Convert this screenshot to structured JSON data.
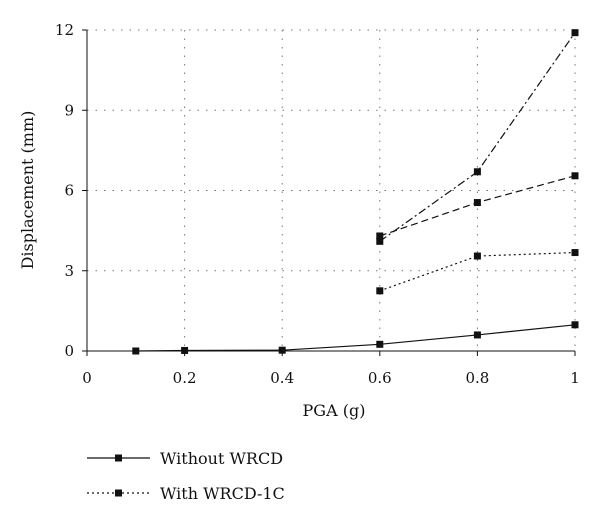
{
  "chart_data": {
    "type": "line",
    "xlabel": "PGA (g)",
    "ylabel": "Displacement (mm)",
    "xlim": [
      0,
      1
    ],
    "ylim": [
      0,
      12
    ],
    "x_ticks": [
      0,
      0.2,
      0.4,
      0.6,
      0.8,
      1
    ],
    "x_tick_labels": [
      "0",
      "0.2",
      "0.4",
      "0.6",
      "0.8",
      "1"
    ],
    "y_ticks": [
      0,
      3,
      6,
      9,
      12
    ],
    "y_tick_labels": [
      "0",
      "3",
      "6",
      "9",
      "12"
    ],
    "grid": "dotted",
    "legend_position": "bottom",
    "series": [
      {
        "name": "Without WRCD",
        "style": "solid",
        "marker": "square",
        "x": [
          0.1,
          0.2,
          0.4,
          0.6,
          0.8,
          1.0
        ],
        "y": [
          0,
          0.02,
          0.03,
          0.25,
          0.6,
          0.98
        ]
      },
      {
        "name": "With WRCD-1C",
        "style": "dotted",
        "marker": "square",
        "x": [
          0.6,
          0.8,
          1.0
        ],
        "y": [
          2.25,
          3.55,
          3.68
        ]
      },
      {
        "style": "dashed",
        "marker": "square",
        "x": [
          0.6,
          0.8,
          1.0
        ],
        "y": [
          4.3,
          5.55,
          6.55
        ]
      },
      {
        "style": "dashdot",
        "marker": "square",
        "x": [
          0.6,
          0.8,
          1.0
        ],
        "y": [
          4.1,
          6.7,
          11.9
        ]
      }
    ]
  },
  "colors": {
    "line": "#111111",
    "grid": "#777777"
  }
}
